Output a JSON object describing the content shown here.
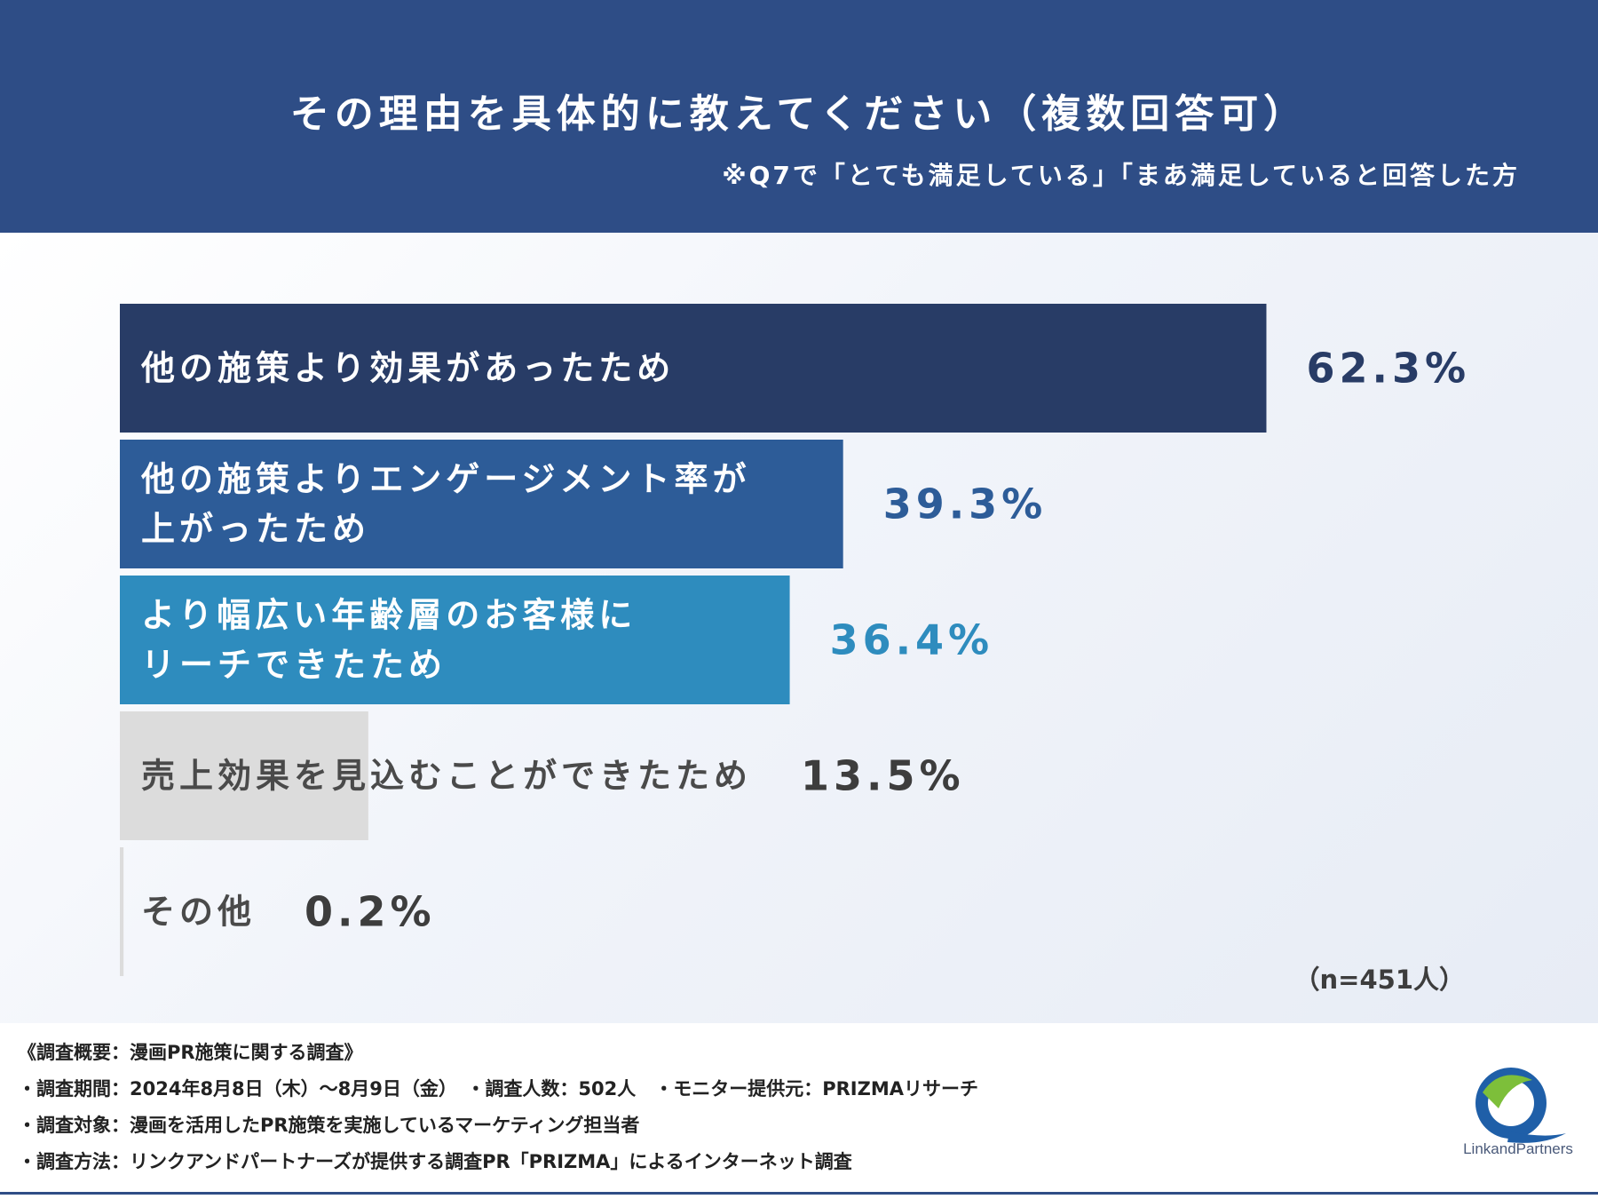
{
  "header": {
    "title": "その理由を具体的に教えてください（複数回答可）",
    "subtitle": "※Q7で「とても満足している」「まあ満足していると回答した方"
  },
  "chart_data": {
    "type": "bar",
    "orientation": "horizontal",
    "categories": [
      [
        "他の施策より効果があったため"
      ],
      [
        "他の施策よりエンゲージメント率が",
        "上がったため"
      ],
      [
        "より幅広い年齢層のお客様に",
        "リーチできたため"
      ],
      [
        "売上効果を見込むことができたため"
      ],
      [
        "その他"
      ]
    ],
    "values": [
      62.3,
      39.3,
      36.4,
      13.5,
      0.2
    ],
    "value_labels": [
      "62.3%",
      "39.3%",
      "36.4%",
      "13.5%",
      "0.2%"
    ],
    "xlim": [
      0,
      100
    ],
    "grid": false,
    "colors": [
      "#283c66",
      "#2d5c98",
      "#2e8cbe",
      "#dcdcdc",
      "#dcdcdc"
    ],
    "label_colors": [
      "#ffffff",
      "#ffffff",
      "#ffffff",
      "#4a4a4a",
      "#4a4a4a"
    ],
    "value_colors": [
      "#283c66",
      "#2d5c98",
      "#2e8cbe",
      "#3d3d3d",
      "#3d3d3d"
    ]
  },
  "sample_size": "（n=451人）",
  "footer": {
    "lines": [
      "《調査概要：漫画PR施策に関する調査》",
      "・調査期間：2024年8月8日（木）～8月9日（金）　・調査人数：502人　・モニター提供元：PRIZMAリサーチ",
      "・調査対象：漫画を活用したPR施策を実施しているマーケティング担当者",
      "・調査方法：リンクアンドパートナーズが提供する調査PR「PRIZMA」によるインターネット調査"
    ]
  },
  "logo": {
    "text": "LinkandPartners"
  }
}
